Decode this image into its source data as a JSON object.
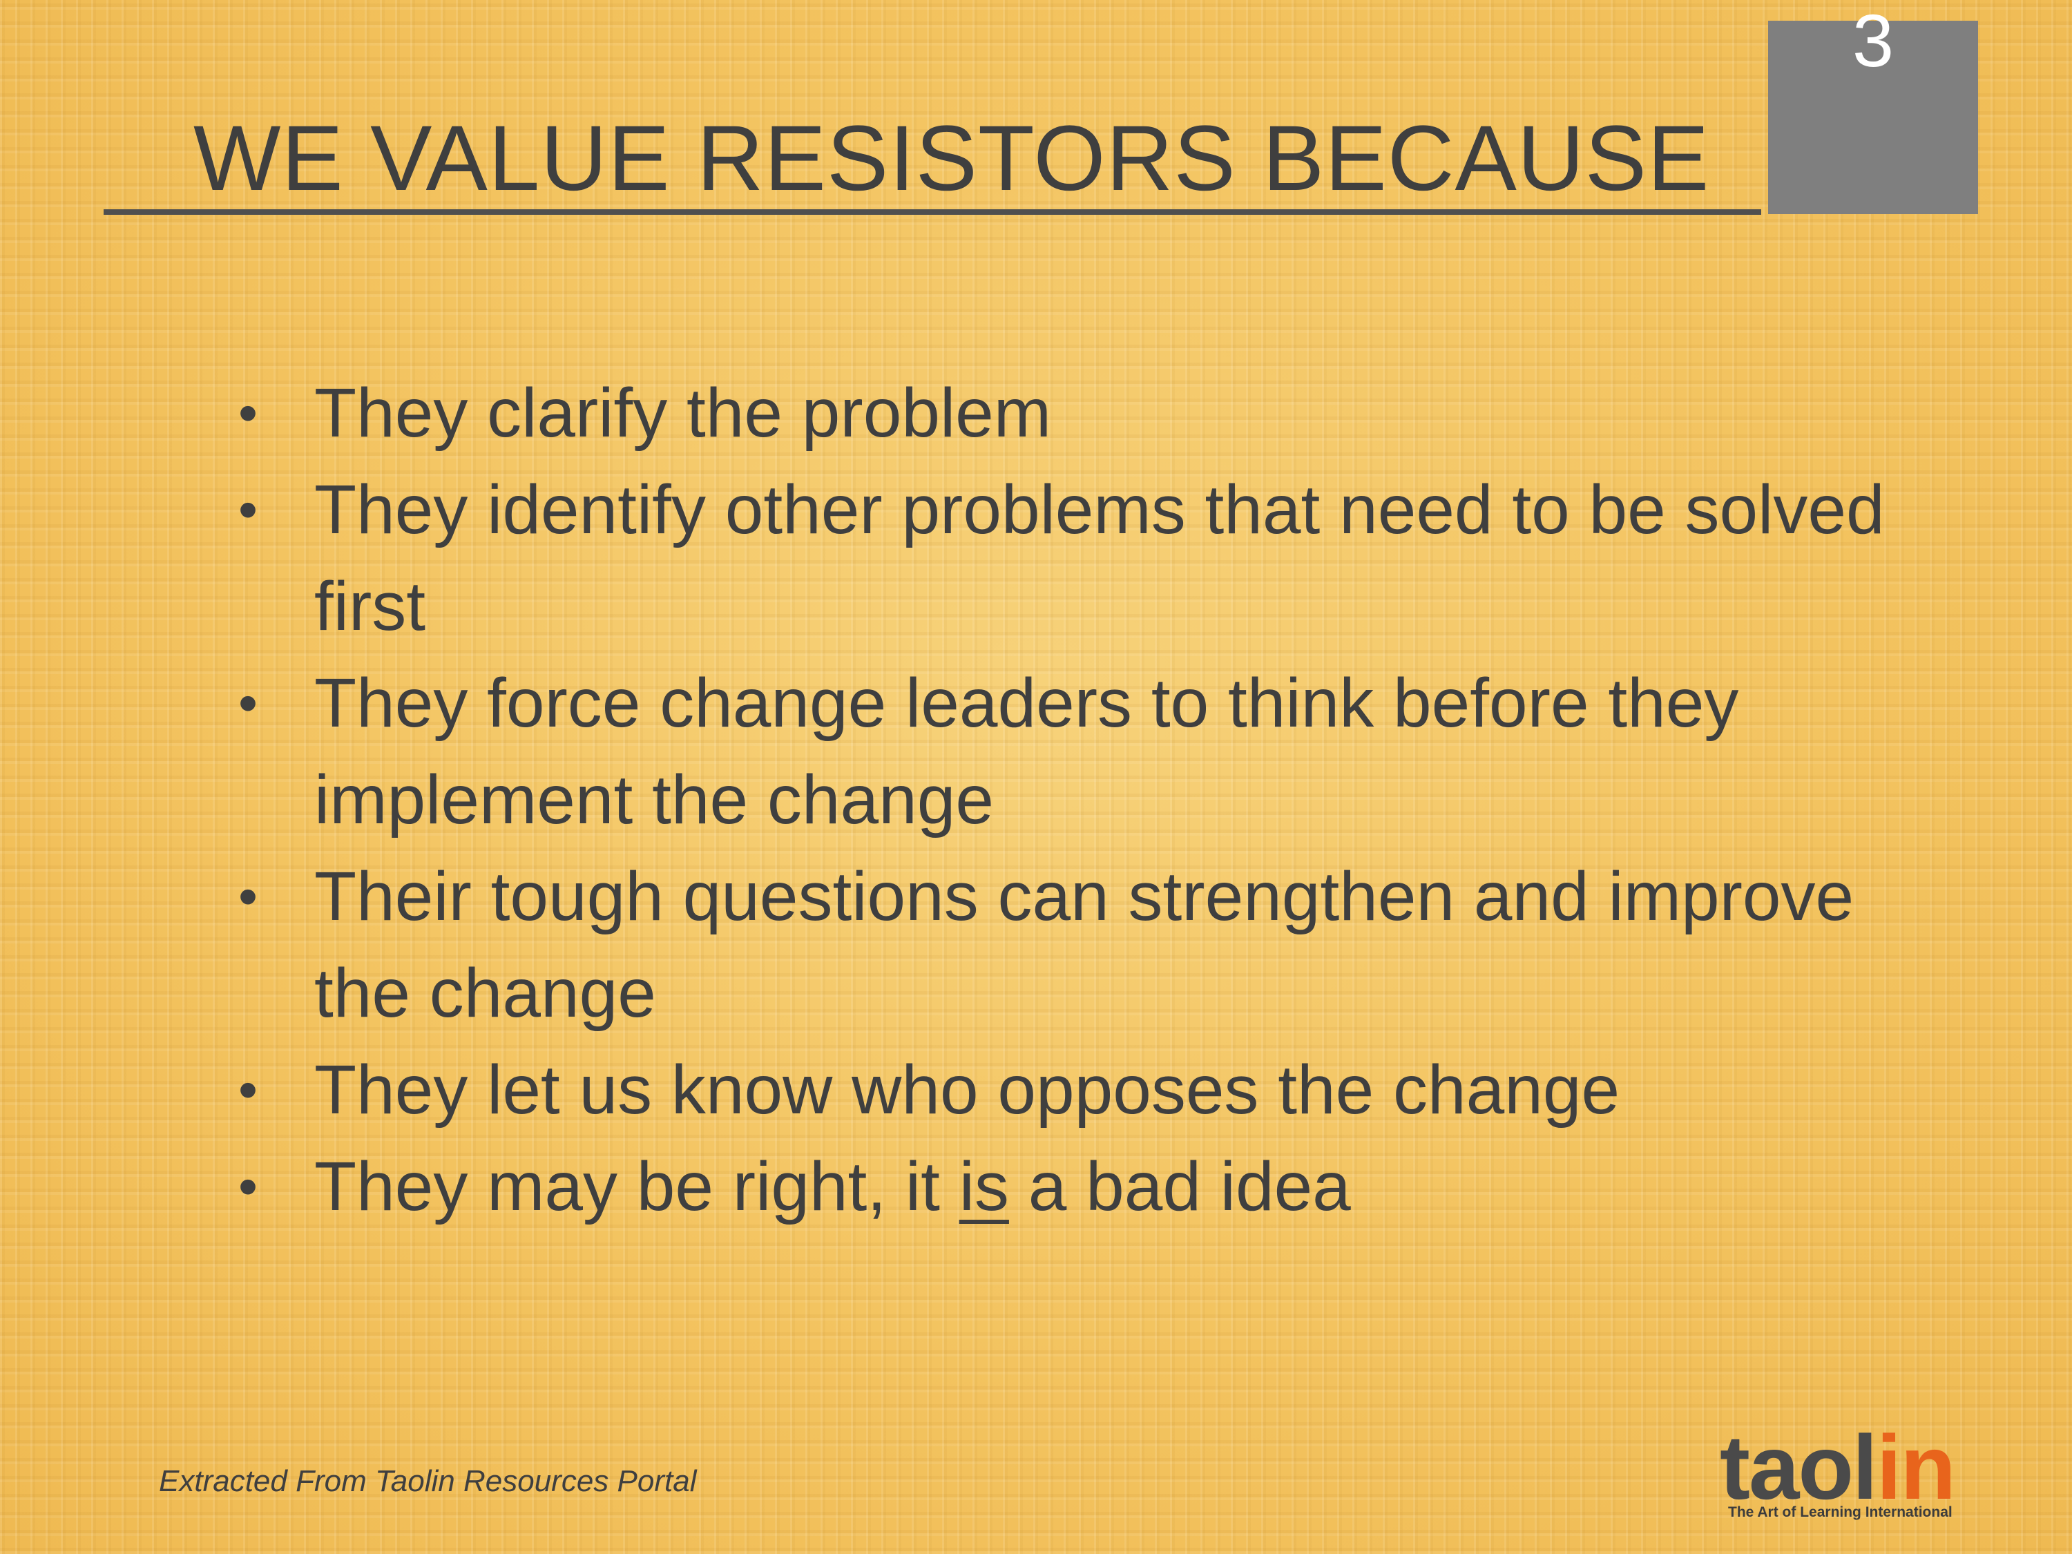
{
  "slide": {
    "title": "WE VALUE RESISTORS BECAUSE",
    "slide_number": "3",
    "bullets": [
      {
        "pre": "They clarify the problem",
        "underlined": "",
        "post": ""
      },
      {
        "pre": "They identify other problems that need to be solved first",
        "underlined": "",
        "post": ""
      },
      {
        "pre": "They force change leaders to think before they implement the change",
        "underlined": "",
        "post": ""
      },
      {
        "pre": "Their tough questions can strengthen and improve the change",
        "underlined": "",
        "post": ""
      },
      {
        "pre": "They let us know who opposes the change",
        "underlined": "",
        "post": ""
      },
      {
        "pre": "They may be right, it ",
        "underlined": "is",
        "post": " a bad idea"
      }
    ],
    "bullet_glyph": "•",
    "footer": "Extracted From Taolin Resources Portal",
    "logo": {
      "word_dark": "taol",
      "word_accent": "in",
      "tagline": "The Art of Learning International",
      "accent_color": "#e8641c",
      "dark_color": "#4a4a4a"
    },
    "colors": {
      "background": "#f4c564",
      "text": "#3f3f3f",
      "number_box": "#7f7f7f"
    }
  }
}
